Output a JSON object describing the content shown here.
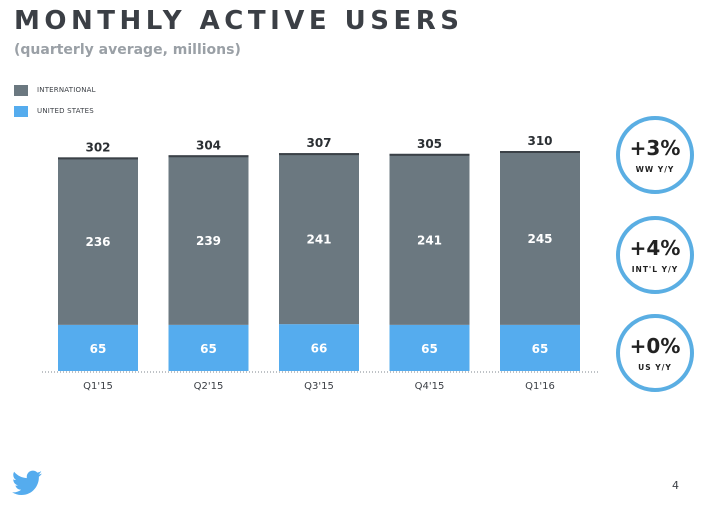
{
  "header": {
    "title": "MONTHLY ACTIVE USERS",
    "subtitle": "(quarterly average, millions)"
  },
  "legend": [
    {
      "label": "INTERNATIONAL",
      "color": "#6b7880"
    },
    {
      "label": "UNITED STATES",
      "color": "#55acee"
    }
  ],
  "chart_data": {
    "type": "bar",
    "stacked": true,
    "title": "MONTHLY ACTIVE USERS",
    "subtitle": "(quarterly average, millions)",
    "categories": [
      "Q1'15",
      "Q2'15",
      "Q3'15",
      "Q4'15",
      "Q1'16"
    ],
    "series": [
      {
        "name": "UNITED STATES",
        "values": [
          65,
          65,
          66,
          65,
          65
        ],
        "color": "#55acee"
      },
      {
        "name": "INTERNATIONAL",
        "values": [
          236,
          239,
          241,
          241,
          245
        ],
        "color": "#6b7880"
      }
    ],
    "totals": [
      "302",
      "304",
      "307",
      "305",
      "310"
    ],
    "ylim": [
      0,
      310
    ],
    "grid": false,
    "legend_position": "top-left"
  },
  "badges": [
    {
      "value": "+3%",
      "label": "WW Y/Y"
    },
    {
      "value": "+4%",
      "label": "INT'L Y/Y"
    },
    {
      "value": "+0%",
      "label": "US Y/Y"
    }
  ],
  "footer": {
    "logo_icon": "twitter-bird-icon",
    "page_number": "4"
  },
  "colors": {
    "accent": "#55acee",
    "international": "#6b7880",
    "baseline": "#7d868c"
  }
}
